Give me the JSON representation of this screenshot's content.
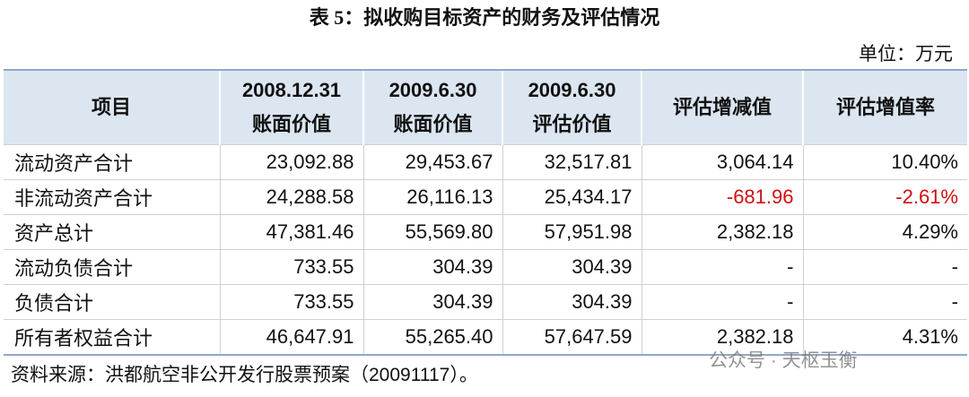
{
  "title": "表 5：拟收购目标资产的财务及评估情况",
  "unit": "单位：万元",
  "table": {
    "header": [
      [
        "项目"
      ],
      [
        "2008.12.31",
        "账面价值"
      ],
      [
        "2009.6.30",
        "账面价值"
      ],
      [
        "2009.6.30",
        "评估价值"
      ],
      [
        "评估增减值"
      ],
      [
        "评估增值率"
      ]
    ],
    "rows": [
      [
        "流动资产合计",
        "23,092.88",
        "29,453.67",
        "32,517.81",
        "3,064.14",
        "10.40%"
      ],
      [
        "非流动资产合计",
        "24,288.58",
        "26,116.13",
        "25,434.17",
        "-681.96",
        "-2.61%"
      ],
      [
        "资产总计",
        "47,381.46",
        "55,569.80",
        "57,951.98",
        "2,382.18",
        "4.29%"
      ],
      [
        "流动负债合计",
        "733.55",
        "304.39",
        "304.39",
        "-",
        "-"
      ],
      [
        "负债合计",
        "733.55",
        "304.39",
        "304.39",
        "-",
        "-"
      ],
      [
        "所有者权益合计",
        "46,647.91",
        "55,265.40",
        "57,647.59",
        "2,382.18",
        "4.31%"
      ]
    ]
  },
  "source": "资料来源：洪都航空非公开发行股票预案（20091117）。",
  "watermark": "公众号 · 天枢玉衡"
}
